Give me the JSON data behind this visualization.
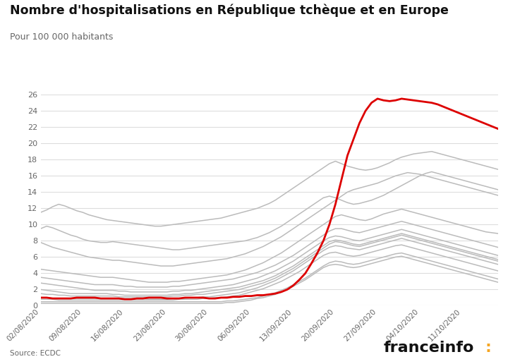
{
  "title": "Nombre d'hospitalisations en République tchèque et en Europe",
  "subtitle": "Pour 100 000 habitants",
  "source": "Source: ECDC",
  "brand_color": "#f5a623",
  "ylim": [
    0,
    26
  ],
  "yticks": [
    0,
    2,
    4,
    6,
    8,
    10,
    12,
    14,
    16,
    18,
    20,
    22,
    24,
    26
  ],
  "background_color": "#ffffff",
  "grid_color": "#dddddd",
  "grey_color": "#bbbbbb",
  "red_color": "#dd0000",
  "start_date": "2020-08-02",
  "n_days": 77,
  "grey_series": [
    [
      11.5,
      11.8,
      12.2,
      12.5,
      12.3,
      12.0,
      11.7,
      11.5,
      11.2,
      11.0,
      10.8,
      10.6,
      10.5,
      10.4,
      10.3,
      10.2,
      10.1,
      10.0,
      9.9,
      9.8,
      9.8,
      9.9,
      10.0,
      10.1,
      10.2,
      10.3,
      10.4,
      10.5,
      10.6,
      10.7,
      10.8,
      11.0,
      11.2,
      11.4,
      11.6,
      11.8,
      12.0,
      12.3,
      12.6,
      13.0,
      13.5,
      14.0,
      14.5,
      15.0,
      15.5,
      16.0,
      16.5,
      17.0,
      17.5,
      17.8,
      17.5,
      17.2,
      17.0,
      16.8,
      16.7,
      16.8,
      17.0,
      17.3,
      17.6,
      18.0,
      18.3,
      18.5,
      18.7,
      18.8,
      18.9,
      19.0,
      18.8,
      18.6,
      18.4,
      18.2,
      18.0,
      17.8,
      17.6,
      17.4,
      17.2,
      17.0,
      16.8
    ],
    [
      9.5,
      9.8,
      9.6,
      9.3,
      9.0,
      8.7,
      8.5,
      8.2,
      8.0,
      7.9,
      7.8,
      7.8,
      7.9,
      7.8,
      7.7,
      7.6,
      7.5,
      7.4,
      7.3,
      7.2,
      7.1,
      7.0,
      6.9,
      6.9,
      7.0,
      7.1,
      7.2,
      7.3,
      7.4,
      7.5,
      7.6,
      7.7,
      7.8,
      7.9,
      8.0,
      8.2,
      8.4,
      8.7,
      9.0,
      9.4,
      9.8,
      10.3,
      10.8,
      11.3,
      11.8,
      12.3,
      12.8,
      13.3,
      13.5,
      13.3,
      13.0,
      12.7,
      12.5,
      12.6,
      12.8,
      13.0,
      13.3,
      13.6,
      14.0,
      14.4,
      14.8,
      15.2,
      15.6,
      16.0,
      16.3,
      16.5,
      16.3,
      16.1,
      15.9,
      15.7,
      15.5,
      15.3,
      15.1,
      14.9,
      14.7,
      14.5,
      14.3
    ],
    [
      7.8,
      7.5,
      7.2,
      7.0,
      6.8,
      6.6,
      6.4,
      6.2,
      6.0,
      5.9,
      5.8,
      5.7,
      5.6,
      5.6,
      5.5,
      5.4,
      5.3,
      5.2,
      5.1,
      5.0,
      4.9,
      4.9,
      4.9,
      5.0,
      5.1,
      5.2,
      5.3,
      5.4,
      5.5,
      5.6,
      5.7,
      5.8,
      6.0,
      6.2,
      6.4,
      6.7,
      7.0,
      7.3,
      7.7,
      8.1,
      8.5,
      9.0,
      9.5,
      10.0,
      10.5,
      11.0,
      11.5,
      12.0,
      12.5,
      13.0,
      13.5,
      14.0,
      14.3,
      14.5,
      14.7,
      14.9,
      15.1,
      15.4,
      15.7,
      16.0,
      16.2,
      16.4,
      16.3,
      16.2,
      16.0,
      15.8,
      15.6,
      15.4,
      15.2,
      15.0,
      14.8,
      14.6,
      14.4,
      14.2,
      14.0,
      13.8,
      13.6
    ],
    [
      4.5,
      4.4,
      4.3,
      4.2,
      4.1,
      4.0,
      3.9,
      3.8,
      3.7,
      3.6,
      3.5,
      3.5,
      3.5,
      3.4,
      3.3,
      3.2,
      3.1,
      3.0,
      2.9,
      2.9,
      2.9,
      2.9,
      3.0,
      3.0,
      3.1,
      3.2,
      3.3,
      3.4,
      3.5,
      3.6,
      3.7,
      3.8,
      4.0,
      4.2,
      4.4,
      4.7,
      5.0,
      5.3,
      5.7,
      6.1,
      6.5,
      7.0,
      7.5,
      8.0,
      8.5,
      9.0,
      9.5,
      10.0,
      10.5,
      11.0,
      11.2,
      11.0,
      10.8,
      10.6,
      10.5,
      10.7,
      11.0,
      11.3,
      11.5,
      11.7,
      11.9,
      11.7,
      11.5,
      11.3,
      11.1,
      10.9,
      10.7,
      10.5,
      10.3,
      10.1,
      9.9,
      9.7,
      9.5,
      9.3,
      9.1,
      9.0,
      8.9
    ],
    [
      3.5,
      3.4,
      3.3,
      3.2,
      3.1,
      3.0,
      2.9,
      2.8,
      2.7,
      2.6,
      2.6,
      2.6,
      2.6,
      2.5,
      2.4,
      2.4,
      2.3,
      2.3,
      2.3,
      2.3,
      2.3,
      2.3,
      2.4,
      2.4,
      2.5,
      2.6,
      2.7,
      2.8,
      2.9,
      3.0,
      3.1,
      3.2,
      3.3,
      3.5,
      3.7,
      3.9,
      4.1,
      4.4,
      4.7,
      5.0,
      5.4,
      5.8,
      6.2,
      6.7,
      7.2,
      7.7,
      8.2,
      8.7,
      9.2,
      9.5,
      9.5,
      9.3,
      9.1,
      9.0,
      9.2,
      9.4,
      9.6,
      9.8,
      10.0,
      10.2,
      10.4,
      10.2,
      10.0,
      9.8,
      9.6,
      9.4,
      9.2,
      9.0,
      8.8,
      8.6,
      8.4,
      8.2,
      8.0,
      7.8,
      7.6,
      7.4,
      7.2
    ],
    [
      2.8,
      2.7,
      2.6,
      2.5,
      2.4,
      2.3,
      2.2,
      2.1,
      2.0,
      1.9,
      1.9,
      1.9,
      1.9,
      1.8,
      1.8,
      1.7,
      1.7,
      1.7,
      1.7,
      1.7,
      1.7,
      1.7,
      1.8,
      1.8,
      1.9,
      1.9,
      2.0,
      2.1,
      2.2,
      2.3,
      2.4,
      2.5,
      2.6,
      2.8,
      3.0,
      3.2,
      3.4,
      3.7,
      4.0,
      4.3,
      4.7,
      5.1,
      5.5,
      6.0,
      6.5,
      7.0,
      7.5,
      8.0,
      8.4,
      8.6,
      8.5,
      8.3,
      8.1,
      8.0,
      8.2,
      8.4,
      8.6,
      8.8,
      9.0,
      9.2,
      9.4,
      9.2,
      9.0,
      8.8,
      8.6,
      8.4,
      8.2,
      8.0,
      7.8,
      7.6,
      7.4,
      7.2,
      7.0,
      6.8,
      6.6,
      6.4,
      6.2
    ],
    [
      2.0,
      1.9,
      1.8,
      1.7,
      1.6,
      1.5,
      1.5,
      1.5,
      1.5,
      1.5,
      1.5,
      1.5,
      1.4,
      1.4,
      1.3,
      1.3,
      1.3,
      1.3,
      1.3,
      1.3,
      1.3,
      1.3,
      1.4,
      1.4,
      1.5,
      1.5,
      1.6,
      1.7,
      1.8,
      1.9,
      2.0,
      2.1,
      2.2,
      2.3,
      2.5,
      2.7,
      2.9,
      3.1,
      3.4,
      3.7,
      4.1,
      4.5,
      4.9,
      5.4,
      5.9,
      6.4,
      6.9,
      7.4,
      7.9,
      8.1,
      8.0,
      7.8,
      7.6,
      7.5,
      7.7,
      7.9,
      8.1,
      8.3,
      8.5,
      8.7,
      8.9,
      8.7,
      8.5,
      8.3,
      8.1,
      7.9,
      7.7,
      7.5,
      7.3,
      7.1,
      6.9,
      6.7,
      6.5,
      6.3,
      6.1,
      5.9,
      5.7
    ],
    [
      1.5,
      1.4,
      1.4,
      1.3,
      1.3,
      1.2,
      1.2,
      1.2,
      1.2,
      1.2,
      1.2,
      1.2,
      1.2,
      1.1,
      1.1,
      1.1,
      1.1,
      1.1,
      1.1,
      1.1,
      1.1,
      1.1,
      1.2,
      1.2,
      1.3,
      1.3,
      1.4,
      1.4,
      1.5,
      1.6,
      1.7,
      1.8,
      1.9,
      2.0,
      2.2,
      2.4,
      2.6,
      2.8,
      3.1,
      3.4,
      3.8,
      4.2,
      4.6,
      5.1,
      5.6,
      6.1,
      6.6,
      7.1,
      7.6,
      7.9,
      7.8,
      7.6,
      7.4,
      7.3,
      7.5,
      7.7,
      7.9,
      8.1,
      8.3,
      8.5,
      8.7,
      8.5,
      8.3,
      8.1,
      7.9,
      7.7,
      7.5,
      7.3,
      7.1,
      6.9,
      6.7,
      6.5,
      6.3,
      6.1,
      5.9,
      5.7,
      5.5
    ],
    [
      1.0,
      1.0,
      0.9,
      0.9,
      0.9,
      0.9,
      0.9,
      0.9,
      0.9,
      0.9,
      0.9,
      0.9,
      0.9,
      0.9,
      0.9,
      0.9,
      0.9,
      0.9,
      0.8,
      0.8,
      0.8,
      0.8,
      0.9,
      0.9,
      0.9,
      1.0,
      1.0,
      1.1,
      1.1,
      1.2,
      1.3,
      1.4,
      1.5,
      1.6,
      1.8,
      2.0,
      2.2,
      2.5,
      2.8,
      3.1,
      3.5,
      3.9,
      4.3,
      4.8,
      5.3,
      5.8,
      6.3,
      6.8,
      7.2,
      7.4,
      7.3,
      7.1,
      7.0,
      6.9,
      7.1,
      7.3,
      7.5,
      7.7,
      7.9,
      8.1,
      8.3,
      8.1,
      7.9,
      7.7,
      7.5,
      7.3,
      7.1,
      6.9,
      6.7,
      6.5,
      6.3,
      6.1,
      5.9,
      5.7,
      5.5,
      5.3,
      5.1
    ],
    [
      0.8,
      0.8,
      0.8,
      0.7,
      0.7,
      0.7,
      0.7,
      0.7,
      0.7,
      0.7,
      0.7,
      0.7,
      0.7,
      0.7,
      0.7,
      0.7,
      0.7,
      0.7,
      0.7,
      0.7,
      0.7,
      0.7,
      0.7,
      0.8,
      0.8,
      0.8,
      0.8,
      0.9,
      0.9,
      1.0,
      1.0,
      1.1,
      1.2,
      1.3,
      1.5,
      1.7,
      1.9,
      2.1,
      2.4,
      2.7,
      3.0,
      3.4,
      3.8,
      4.2,
      4.7,
      5.2,
      5.7,
      6.2,
      6.5,
      6.6,
      6.4,
      6.2,
      6.1,
      6.2,
      6.4,
      6.6,
      6.8,
      7.0,
      7.2,
      7.4,
      7.5,
      7.3,
      7.1,
      6.9,
      6.7,
      6.5,
      6.3,
      6.1,
      5.9,
      5.7,
      5.5,
      5.3,
      5.1,
      4.9,
      4.7,
      4.5,
      4.3
    ],
    [
      0.5,
      0.5,
      0.5,
      0.5,
      0.5,
      0.5,
      0.5,
      0.5,
      0.5,
      0.5,
      0.5,
      0.5,
      0.5,
      0.5,
      0.5,
      0.5,
      0.5,
      0.5,
      0.5,
      0.5,
      0.5,
      0.5,
      0.5,
      0.5,
      0.5,
      0.5,
      0.5,
      0.5,
      0.5,
      0.5,
      0.5,
      0.6,
      0.6,
      0.7,
      0.8,
      0.9,
      1.0,
      1.2,
      1.4,
      1.6,
      1.9,
      2.2,
      2.6,
      3.0,
      3.4,
      3.9,
      4.4,
      4.9,
      5.3,
      5.5,
      5.4,
      5.2,
      5.1,
      5.2,
      5.4,
      5.6,
      5.8,
      6.0,
      6.2,
      6.4,
      6.5,
      6.3,
      6.1,
      5.9,
      5.7,
      5.5,
      5.3,
      5.1,
      4.9,
      4.7,
      4.5,
      4.3,
      4.1,
      3.9,
      3.7,
      3.5,
      3.3
    ],
    [
      0.3,
      0.3,
      0.3,
      0.3,
      0.3,
      0.3,
      0.3,
      0.3,
      0.3,
      0.3,
      0.3,
      0.3,
      0.3,
      0.3,
      0.3,
      0.3,
      0.3,
      0.3,
      0.3,
      0.3,
      0.3,
      0.3,
      0.3,
      0.3,
      0.3,
      0.3,
      0.3,
      0.3,
      0.3,
      0.3,
      0.3,
      0.4,
      0.4,
      0.5,
      0.6,
      0.7,
      0.9,
      1.0,
      1.2,
      1.4,
      1.7,
      2.0,
      2.4,
      2.8,
      3.2,
      3.7,
      4.2,
      4.7,
      5.0,
      5.1,
      5.0,
      4.8,
      4.7,
      4.8,
      5.0,
      5.2,
      5.4,
      5.6,
      5.8,
      6.0,
      6.1,
      5.9,
      5.7,
      5.5,
      5.3,
      5.1,
      4.9,
      4.7,
      4.5,
      4.3,
      4.1,
      3.9,
      3.7,
      3.5,
      3.3,
      3.1,
      2.9
    ]
  ],
  "czech_series": [
    1.0,
    1.0,
    0.9,
    0.9,
    0.9,
    0.9,
    1.0,
    1.0,
    1.0,
    1.0,
    0.9,
    0.9,
    0.9,
    0.9,
    0.8,
    0.8,
    0.9,
    0.9,
    1.0,
    1.0,
    1.0,
    0.9,
    0.9,
    0.9,
    1.0,
    1.0,
    1.0,
    1.0,
    0.9,
    0.9,
    1.0,
    1.0,
    1.1,
    1.1,
    1.2,
    1.2,
    1.3,
    1.3,
    1.4,
    1.5,
    1.7,
    2.0,
    2.5,
    3.2,
    4.0,
    5.2,
    6.5,
    8.0,
    10.0,
    12.5,
    15.5,
    18.5,
    20.5,
    22.5,
    24.0,
    25.0,
    25.5,
    25.3,
    25.2,
    25.3,
    25.5,
    25.4,
    25.3,
    25.2,
    25.1,
    25.0,
    24.8,
    24.5,
    24.2,
    23.9,
    23.6,
    23.3,
    23.0,
    22.7,
    22.4,
    22.1,
    21.8
  ]
}
